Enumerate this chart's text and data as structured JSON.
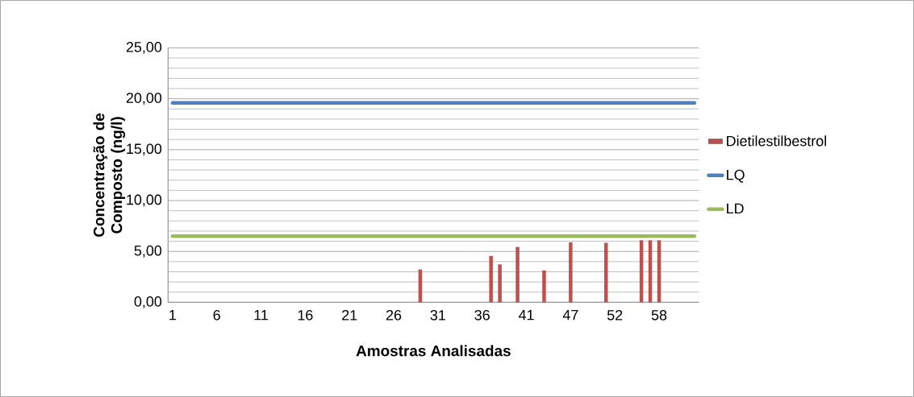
{
  "chart_data": {
    "type": "bar",
    "xlabel": "Amostras Analisadas",
    "ylabel": "Concentração de Composto (ng/l)",
    "categories": [
      "1",
      null,
      null,
      null,
      null,
      "6",
      null,
      null,
      null,
      null,
      "11",
      null,
      null,
      null,
      null,
      "16",
      null,
      null,
      null,
      null,
      "21",
      null,
      null,
      null,
      null,
      "26",
      null,
      null,
      null,
      null,
      "31",
      null,
      null,
      null,
      null,
      "36",
      null,
      null,
      null,
      null,
      "41",
      null,
      null,
      null,
      null,
      "47",
      null,
      null,
      null,
      null,
      "52",
      null,
      null,
      null,
      null,
      "58",
      null,
      null,
      null,
      null
    ],
    "series": [
      {
        "name": "Dietilestilbestrol",
        "color": "#c0504d",
        "values": [
          null,
          null,
          null,
          null,
          null,
          null,
          null,
          null,
          null,
          null,
          null,
          null,
          null,
          null,
          null,
          null,
          null,
          null,
          null,
          null,
          null,
          null,
          null,
          null,
          null,
          null,
          null,
          null,
          3.24,
          null,
          null,
          null,
          null,
          null,
          null,
          null,
          4.56,
          3.73,
          null,
          5.44,
          null,
          null,
          3.14,
          null,
          null,
          5.89,
          null,
          null,
          null,
          5.85,
          null,
          null,
          null,
          6.1,
          6.1,
          6.1,
          null,
          null,
          null,
          null
        ]
      },
      {
        "name": "LQ",
        "type": "line",
        "color": "#4f81bd",
        "values": [
          19.6,
          19.6,
          19.6,
          19.6,
          19.6,
          19.6,
          19.6,
          19.6,
          19.6,
          19.6,
          19.6,
          19.6,
          19.6,
          19.6,
          19.6,
          19.6,
          19.6,
          19.6,
          19.6,
          19.6,
          19.6,
          19.6,
          19.6,
          19.6,
          19.6,
          19.6,
          19.6,
          19.6,
          19.6,
          19.6,
          19.6,
          19.6,
          19.6,
          19.6,
          19.6,
          19.6,
          19.6,
          19.6,
          19.6,
          19.6,
          19.6,
          19.6,
          19.6,
          19.6,
          19.6,
          19.6,
          19.6,
          19.6,
          19.6,
          19.6,
          19.6,
          19.6,
          19.6,
          19.6,
          19.6,
          19.6,
          19.6,
          19.6,
          19.6,
          19.6
        ]
      },
      {
        "name": "LD",
        "type": "line",
        "color": "#9bbb59",
        "values": [
          6.5,
          6.5,
          6.5,
          6.5,
          6.5,
          6.5,
          6.5,
          6.5,
          6.5,
          6.5,
          6.5,
          6.5,
          6.5,
          6.5,
          6.5,
          6.5,
          6.5,
          6.5,
          6.5,
          6.5,
          6.5,
          6.5,
          6.5,
          6.5,
          6.5,
          6.5,
          6.5,
          6.5,
          6.5,
          6.5,
          6.5,
          6.5,
          6.5,
          6.5,
          6.5,
          6.5,
          6.5,
          6.5,
          6.5,
          6.5,
          6.5,
          6.5,
          6.5,
          6.5,
          6.5,
          6.5,
          6.5,
          6.5,
          6.5,
          6.5,
          6.5,
          6.5,
          6.5,
          6.5,
          6.5,
          6.5,
          6.5,
          6.5,
          6.5,
          6.5
        ]
      }
    ],
    "ylim": [
      0,
      25
    ],
    "yticks": [
      {
        "value": 0,
        "label": "0,00"
      },
      {
        "value": 5,
        "label": "5,00"
      },
      {
        "value": 10,
        "label": "10,00"
      },
      {
        "value": 15,
        "label": "15,00"
      },
      {
        "value": 20,
        "label": "20,00"
      },
      {
        "value": 25,
        "label": "25,00"
      }
    ],
    "grid": "y",
    "legend": "right"
  }
}
